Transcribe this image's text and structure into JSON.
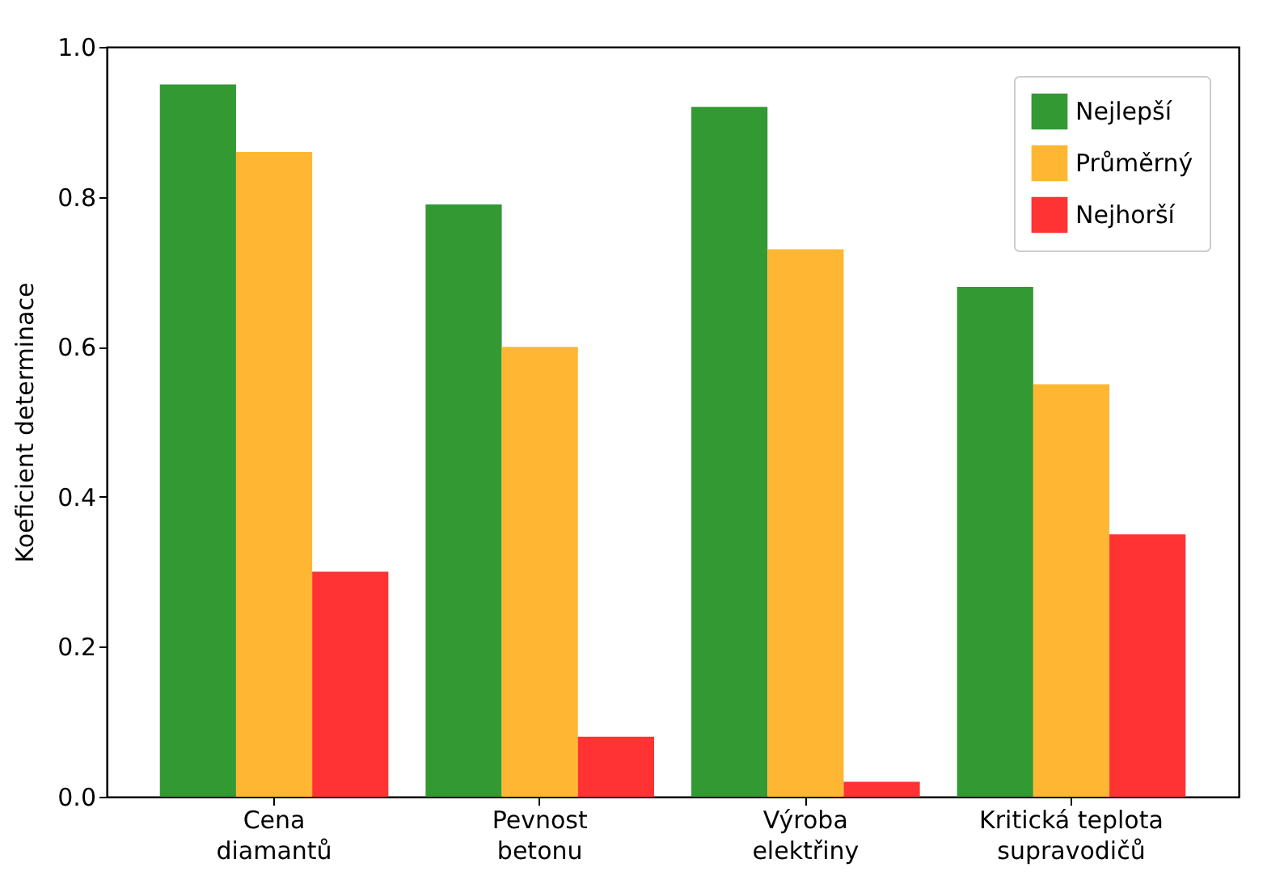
{
  "chart_data": {
    "type": "bar",
    "ylabel": "Koeficient determinace",
    "categories": [
      "Cena\ndiamantů",
      "Pevnost\nbetonu",
      "Výroba\nelektřiny",
      "Kritická teplota\nsupravodičů"
    ],
    "series": [
      {
        "name": "Nejlepší",
        "color": "#339933",
        "values": [
          0.95,
          0.79,
          0.92,
          0.68
        ]
      },
      {
        "name": "Průměrný",
        "color": "#ffb733",
        "values": [
          0.86,
          0.6,
          0.73,
          0.55
        ]
      },
      {
        "name": "Nejhorší",
        "color": "#ff3333",
        "values": [
          0.3,
          0.08,
          0.02,
          0.35
        ]
      }
    ],
    "ylim": [
      0,
      1
    ],
    "yticks": [
      {
        "value": 0,
        "label": "0.0"
      },
      {
        "value": 0.2,
        "label": "0.2"
      },
      {
        "value": 0.4,
        "label": "0.4"
      },
      {
        "value": 0.6,
        "label": "0.6"
      },
      {
        "value": 0.8,
        "label": "0.8"
      },
      {
        "value": 1,
        "label": "1.0"
      }
    ],
    "legend": "top right",
    "grid": false
  }
}
